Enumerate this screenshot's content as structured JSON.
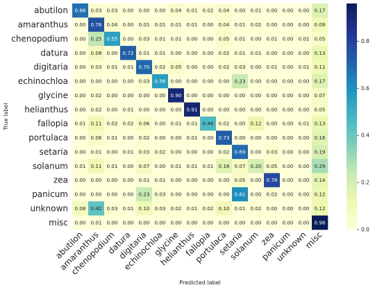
{
  "chart_data": {
    "type": "heatmap",
    "title": "",
    "xlabel": "Predicted label",
    "ylabel": "True label",
    "labels": [
      "abutilon",
      "amaranthus",
      "chenopodium",
      "datura",
      "digitaria",
      "echinochloa",
      "glycine",
      "helianthus",
      "fallopia",
      "portulaca",
      "setaria",
      "solanum",
      "zea",
      "panicum",
      "unknown",
      "misc"
    ],
    "matrix": [
      [
        0.68,
        0.03,
        0.03,
        0.0,
        0.0,
        0.0,
        0.04,
        0.01,
        0.02,
        0.04,
        0.0,
        0.01,
        0.0,
        0.0,
        0.0,
        0.17
      ],
      [
        0.0,
        0.76,
        0.04,
        0.0,
        0.01,
        0.01,
        0.01,
        0.01,
        0.0,
        0.04,
        0.01,
        0.02,
        0.0,
        0.0,
        0.0,
        0.09
      ],
      [
        0.0,
        0.25,
        0.55,
        0.0,
        0.03,
        0.01,
        0.01,
        0.0,
        0.0,
        0.05,
        0.01,
        0.0,
        0.01,
        0.0,
        0.02,
        0.05
      ],
      [
        0.0,
        0.08,
        0.0,
        0.72,
        0.01,
        0.01,
        0.0,
        0.0,
        0.0,
        0.02,
        0.01,
        0.01,
        0.0,
        0.0,
        0.0,
        0.13
      ],
      [
        0.0,
        0.03,
        0.01,
        0.01,
        0.7,
        0.02,
        0.05,
        0.0,
        0.0,
        0.02,
        0.03,
        0.0,
        0.01,
        0.0,
        0.01,
        0.11
      ],
      [
        0.0,
        0.0,
        0.0,
        0.0,
        0.03,
        0.56,
        0.0,
        0.0,
        0.0,
        0.0,
        0.23,
        0.0,
        0.0,
        0.0,
        0.0,
        0.17
      ],
      [
        0.0,
        0.02,
        0.0,
        0.0,
        0.0,
        0.0,
        0.9,
        0.0,
        0.0,
        0.0,
        0.0,
        0.0,
        0.0,
        0.0,
        0.0,
        0.07
      ],
      [
        0.0,
        0.02,
        0.0,
        0.01,
        0.0,
        0.0,
        0.0,
        0.91,
        0.0,
        0.0,
        0.0,
        0.0,
        0.0,
        0.0,
        0.0,
        0.05
      ],
      [
        0.01,
        0.11,
        0.02,
        0.02,
        0.06,
        0.0,
        0.01,
        0.01,
        0.46,
        0.02,
        0.0,
        0.12,
        0.0,
        0.0,
        0.01,
        0.13
      ],
      [
        0.0,
        0.06,
        0.01,
        0.0,
        0.02,
        0.0,
        0.0,
        0.01,
        0.0,
        0.73,
        0.0,
        0.0,
        0.0,
        0.0,
        0.0,
        0.16
      ],
      [
        0.0,
        0.01,
        0.0,
        0.01,
        0.03,
        0.02,
        0.0,
        0.0,
        0.0,
        0.02,
        0.69,
        0.0,
        0.03,
        0.0,
        0.0,
        0.19
      ],
      [
        0.01,
        0.11,
        0.01,
        0.0,
        0.07,
        0.0,
        0.01,
        0.01,
        0.01,
        0.16,
        0.07,
        0.2,
        0.05,
        0.0,
        0.0,
        0.29
      ],
      [
        0.0,
        0.0,
        0.0,
        0.0,
        0.01,
        0.01,
        0.0,
        0.0,
        0.0,
        0.0,
        0.05,
        0.0,
        0.78,
        0.0,
        0.0,
        0.14
      ],
      [
        0.0,
        0.0,
        0.0,
        0.0,
        0.23,
        0.03,
        0.0,
        0.0,
        0.0,
        0.0,
        0.61,
        0.0,
        0.02,
        0.0,
        0.0,
        0.12
      ],
      [
        0.08,
        0.42,
        0.03,
        0.01,
        0.1,
        0.03,
        0.02,
        0.01,
        0.02,
        0.1,
        0.01,
        0.02,
        0.0,
        0.0,
        0.0,
        0.12
      ],
      [
        0.0,
        0.01,
        0.0,
        0.0,
        0.0,
        0.0,
        0.0,
        0.0,
        0.0,
        0.0,
        0.0,
        0.0,
        0.0,
        0.0,
        0.0,
        0.98
      ]
    ],
    "colormap": "YlGnBu",
    "colorbar": {
      "min": 0.0,
      "max": 0.96,
      "ticks": [
        "0.0",
        "0.2",
        "0.4",
        "0.6",
        "0.8"
      ]
    }
  }
}
